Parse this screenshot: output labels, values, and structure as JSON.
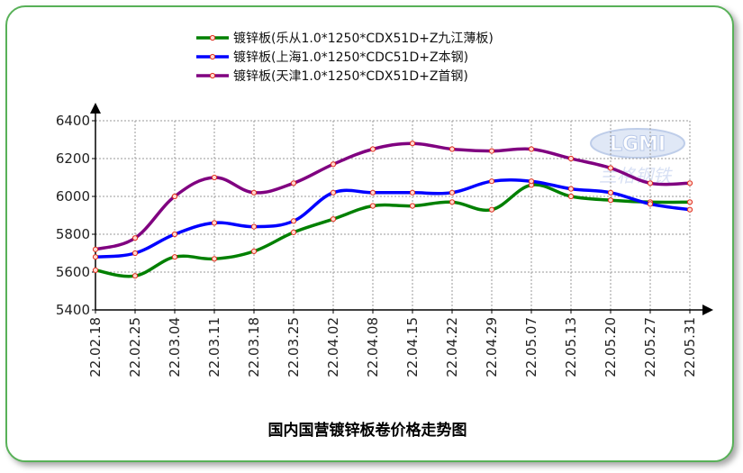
{
  "chart_data": {
    "type": "line",
    "title": "国内国营镀锌板卷价格走势图",
    "xlabel": "",
    "ylabel": "",
    "categories": [
      "22.02.18",
      "22.02.25",
      "22.03.04",
      "22.03.11",
      "22.03.18",
      "22.03.25",
      "22.04.02",
      "22.04.08",
      "22.04.15",
      "22.04.22",
      "22.04.29",
      "22.05.07",
      "22.05.13",
      "22.05.20",
      "22.05.27",
      "22.05.31"
    ],
    "ylim": [
      5400,
      6400
    ],
    "yticks": [
      5400,
      5600,
      5800,
      6000,
      6200,
      6400
    ],
    "grid": true,
    "legend_position": "top",
    "series": [
      {
        "name": "镀锌板(乐从1.0*1250*CDX51D+Z九江薄板)",
        "color": "#008000",
        "values": [
          5610,
          5580,
          5680,
          5670,
          5710,
          5810,
          5880,
          5950,
          5950,
          5970,
          5930,
          6060,
          6000,
          5980,
          5970,
          5970
        ]
      },
      {
        "name": "镀锌板(上海1.0*1250*CDC51D+Z本钢)",
        "color": "#0000ff",
        "values": [
          5680,
          5700,
          5800,
          5860,
          5840,
          5870,
          6020,
          6020,
          6020,
          6020,
          6080,
          6080,
          6040,
          6020,
          5960,
          5930
        ]
      },
      {
        "name": "镀锌板(天津1.0*1250*CDX51D+Z首钢)",
        "color": "#800080",
        "values": [
          5720,
          5780,
          6000,
          6100,
          6020,
          6070,
          6170,
          6250,
          6280,
          6250,
          6240,
          6250,
          6200,
          6150,
          6070,
          6070
        ]
      }
    ],
    "watermark": "LGMI 兰格钢铁"
  }
}
